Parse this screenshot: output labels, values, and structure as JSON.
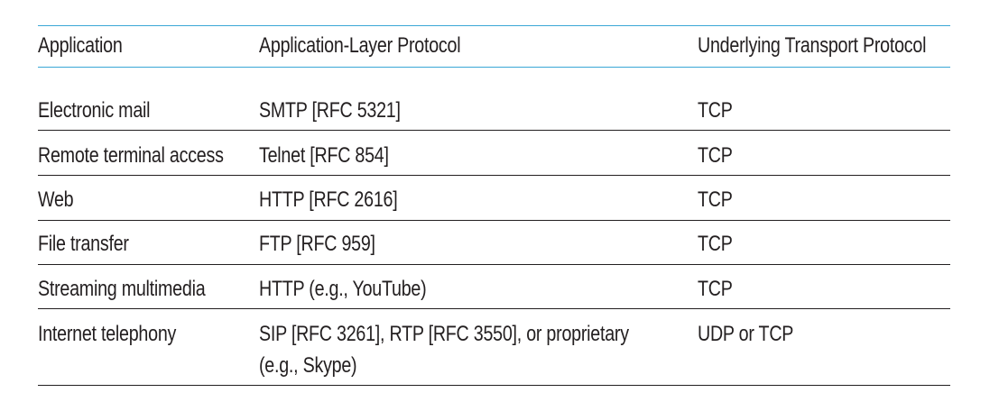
{
  "table": {
    "headers": [
      "Application",
      "Application-Layer Protocol",
      "Underlying Transport Protocol"
    ],
    "rows": [
      {
        "application": "Electronic mail",
        "protocol": "SMTP [RFC 5321]",
        "transport": "TCP"
      },
      {
        "application": "Remote terminal access",
        "protocol": "Telnet [RFC 854]",
        "transport": "TCP"
      },
      {
        "application": "Web",
        "protocol": "HTTP [RFC 2616]",
        "transport": "TCP"
      },
      {
        "application": "File transfer",
        "protocol": "FTP [RFC 959]",
        "transport": "TCP"
      },
      {
        "application": "Streaming multimedia",
        "protocol": "HTTP (e.g., YouTube)",
        "transport": "TCP"
      },
      {
        "application": "Internet telephony",
        "protocol": "SIP [RFC 3261], RTP [RFC 3550], or proprietary",
        "protocol_line2": "(e.g., Skype)",
        "transport": "UDP or TCP"
      }
    ]
  },
  "colors": {
    "header_rule": "#3aa7d6",
    "row_rule": "#231f20",
    "text": "#231f20"
  }
}
